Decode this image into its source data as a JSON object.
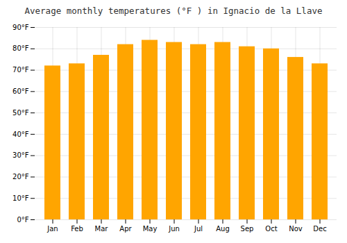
{
  "chart_data": {
    "type": "bar",
    "title": "Average monthly temperatures (°F ) in Ignacio de la Llave",
    "categories": [
      "Jan",
      "Feb",
      "Mar",
      "Apr",
      "May",
      "Jun",
      "Jul",
      "Aug",
      "Sep",
      "Oct",
      "Nov",
      "Dec"
    ],
    "values": [
      72,
      73,
      77,
      82,
      84,
      83,
      82,
      83,
      81,
      80,
      76,
      73
    ],
    "color": "#FFA500",
    "ylim": [
      0,
      90
    ],
    "yticks": [
      {
        "value": 0,
        "label": "0°F"
      },
      {
        "value": 10,
        "label": "10°F"
      },
      {
        "value": 20,
        "label": "20°F"
      },
      {
        "value": 30,
        "label": "30°F"
      },
      {
        "value": 40,
        "label": "40°F"
      },
      {
        "value": 50,
        "label": "50°F"
      },
      {
        "value": 60,
        "label": "60°F"
      },
      {
        "value": 70,
        "label": "70°F"
      },
      {
        "value": 80,
        "label": "80°F"
      },
      {
        "value": 90,
        "label": "90°F"
      }
    ],
    "grid": true
  }
}
